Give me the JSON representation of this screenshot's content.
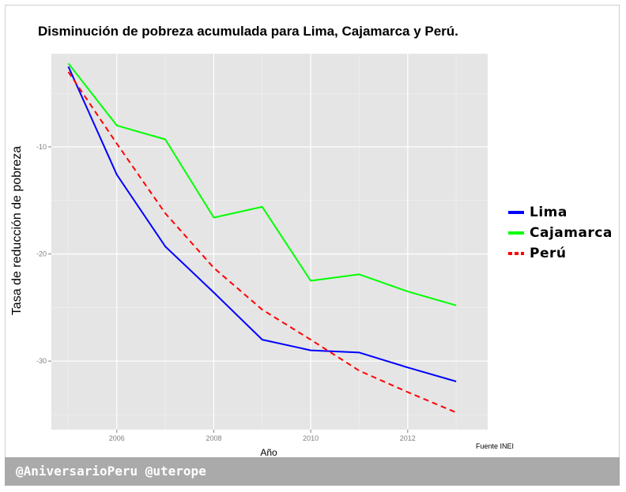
{
  "chart_data": {
    "type": "line",
    "title": "Disminución de pobreza acumulada para Lima, Cajamarca y Perú.",
    "xlabel": "Año",
    "ylabel": "Tasa de reducción de pobreza",
    "xlim": [
      2004.65,
      2013.65
    ],
    "ylim": [
      -36.4,
      -1.3
    ],
    "xticks": [
      2006,
      2008,
      2010,
      2012
    ],
    "xtick_labels": [
      "2006",
      "2008",
      "2010",
      "2012"
    ],
    "yticks": [
      -10,
      -20,
      -30
    ],
    "ytick_labels": [
      "-10",
      "-20",
      "-30"
    ],
    "grid": true,
    "legend_position": "right",
    "x": [
      2005,
      2006,
      2007,
      2008,
      2009,
      2010,
      2011,
      2012,
      2013
    ],
    "series": [
      {
        "name": "Lima",
        "color": "#0000ff",
        "dash": "solid",
        "values": [
          -2.5,
          -12.6,
          -19.3,
          -23.6,
          -28.0,
          -29.0,
          -29.2,
          -30.6,
          -31.9
        ]
      },
      {
        "name": "Cajamarca",
        "color": "#00ff00",
        "dash": "solid",
        "values": [
          -2.2,
          -8.0,
          -9.3,
          -16.6,
          -15.6,
          -22.5,
          -21.9,
          -23.5,
          -24.8
        ]
      },
      {
        "name": "Perú",
        "color": "#ff0000",
        "dash": "dashed",
        "values": [
          -3.0,
          -9.7,
          -16.2,
          -21.3,
          -25.2,
          -28.0,
          -30.9,
          -32.9,
          -34.8
        ]
      }
    ],
    "source_note": "Fuente INEI"
  },
  "footer": {
    "text": "@AniversarioPeru @uterope"
  },
  "colors": {
    "panel_background": "#e5e5e5",
    "grid": "#ffffff",
    "footer_background": "#aaaaaa"
  }
}
